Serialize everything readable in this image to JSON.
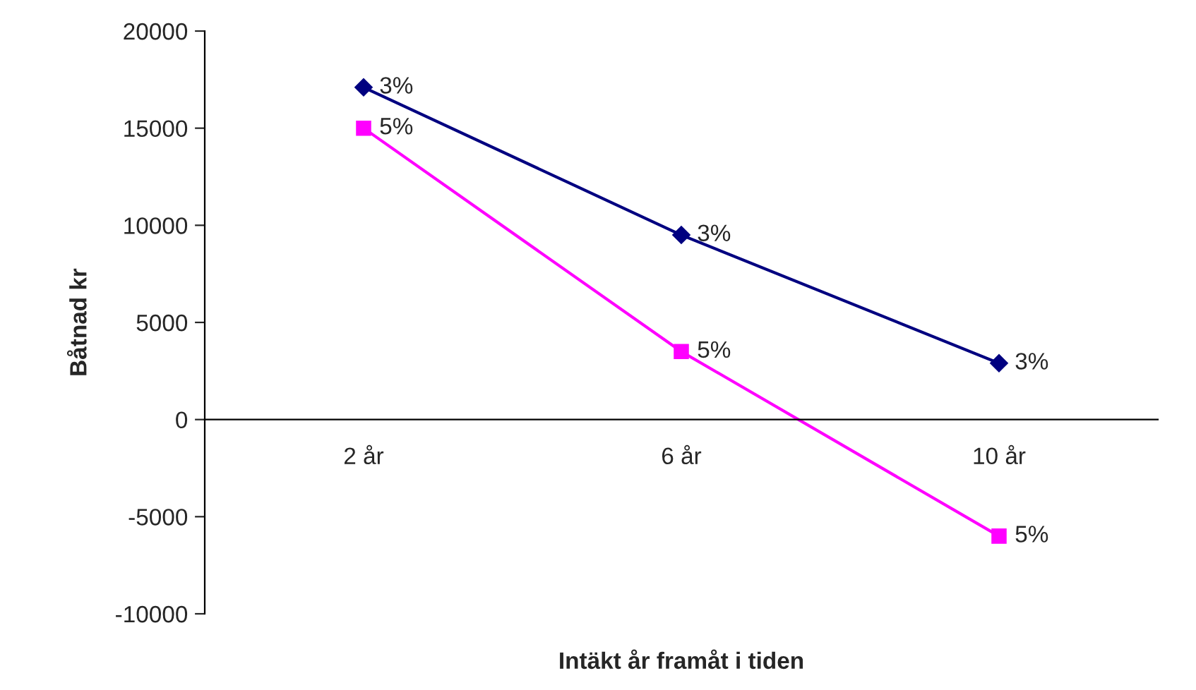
{
  "chart_data": {
    "type": "line",
    "xlabel": "Intäkt år framåt i tiden",
    "ylabel": "Båtnad kr",
    "categories": [
      "2 år",
      "6 år",
      "10 år"
    ],
    "series": [
      {
        "color": "#000080",
        "marker": "diamond",
        "values": [
          17100,
          9500,
          2900
        ]
      },
      {
        "color": "#ff00ff",
        "marker": "square",
        "values": [
          15000,
          3500,
          -6000
        ]
      }
    ],
    "annotations": [
      {
        "text": "3%",
        "x": "2 år",
        "y": 17100
      },
      {
        "text": "3%",
        "x": "6 år",
        "y": 9500
      },
      {
        "text": "3%",
        "x": "10 år",
        "y": 2900
      },
      {
        "text": "5%",
        "x": "2 år",
        "y": 15000
      },
      {
        "text": "5%",
        "x": "6 år",
        "y": 3500
      },
      {
        "text": "5%",
        "x": "10 år",
        "y": -6000
      }
    ],
    "ylim": [
      -10000,
      20000
    ],
    "yticks": [
      -10000,
      -5000,
      0,
      5000,
      10000,
      15000,
      20000
    ],
    "grid": false,
    "legend": false
  }
}
